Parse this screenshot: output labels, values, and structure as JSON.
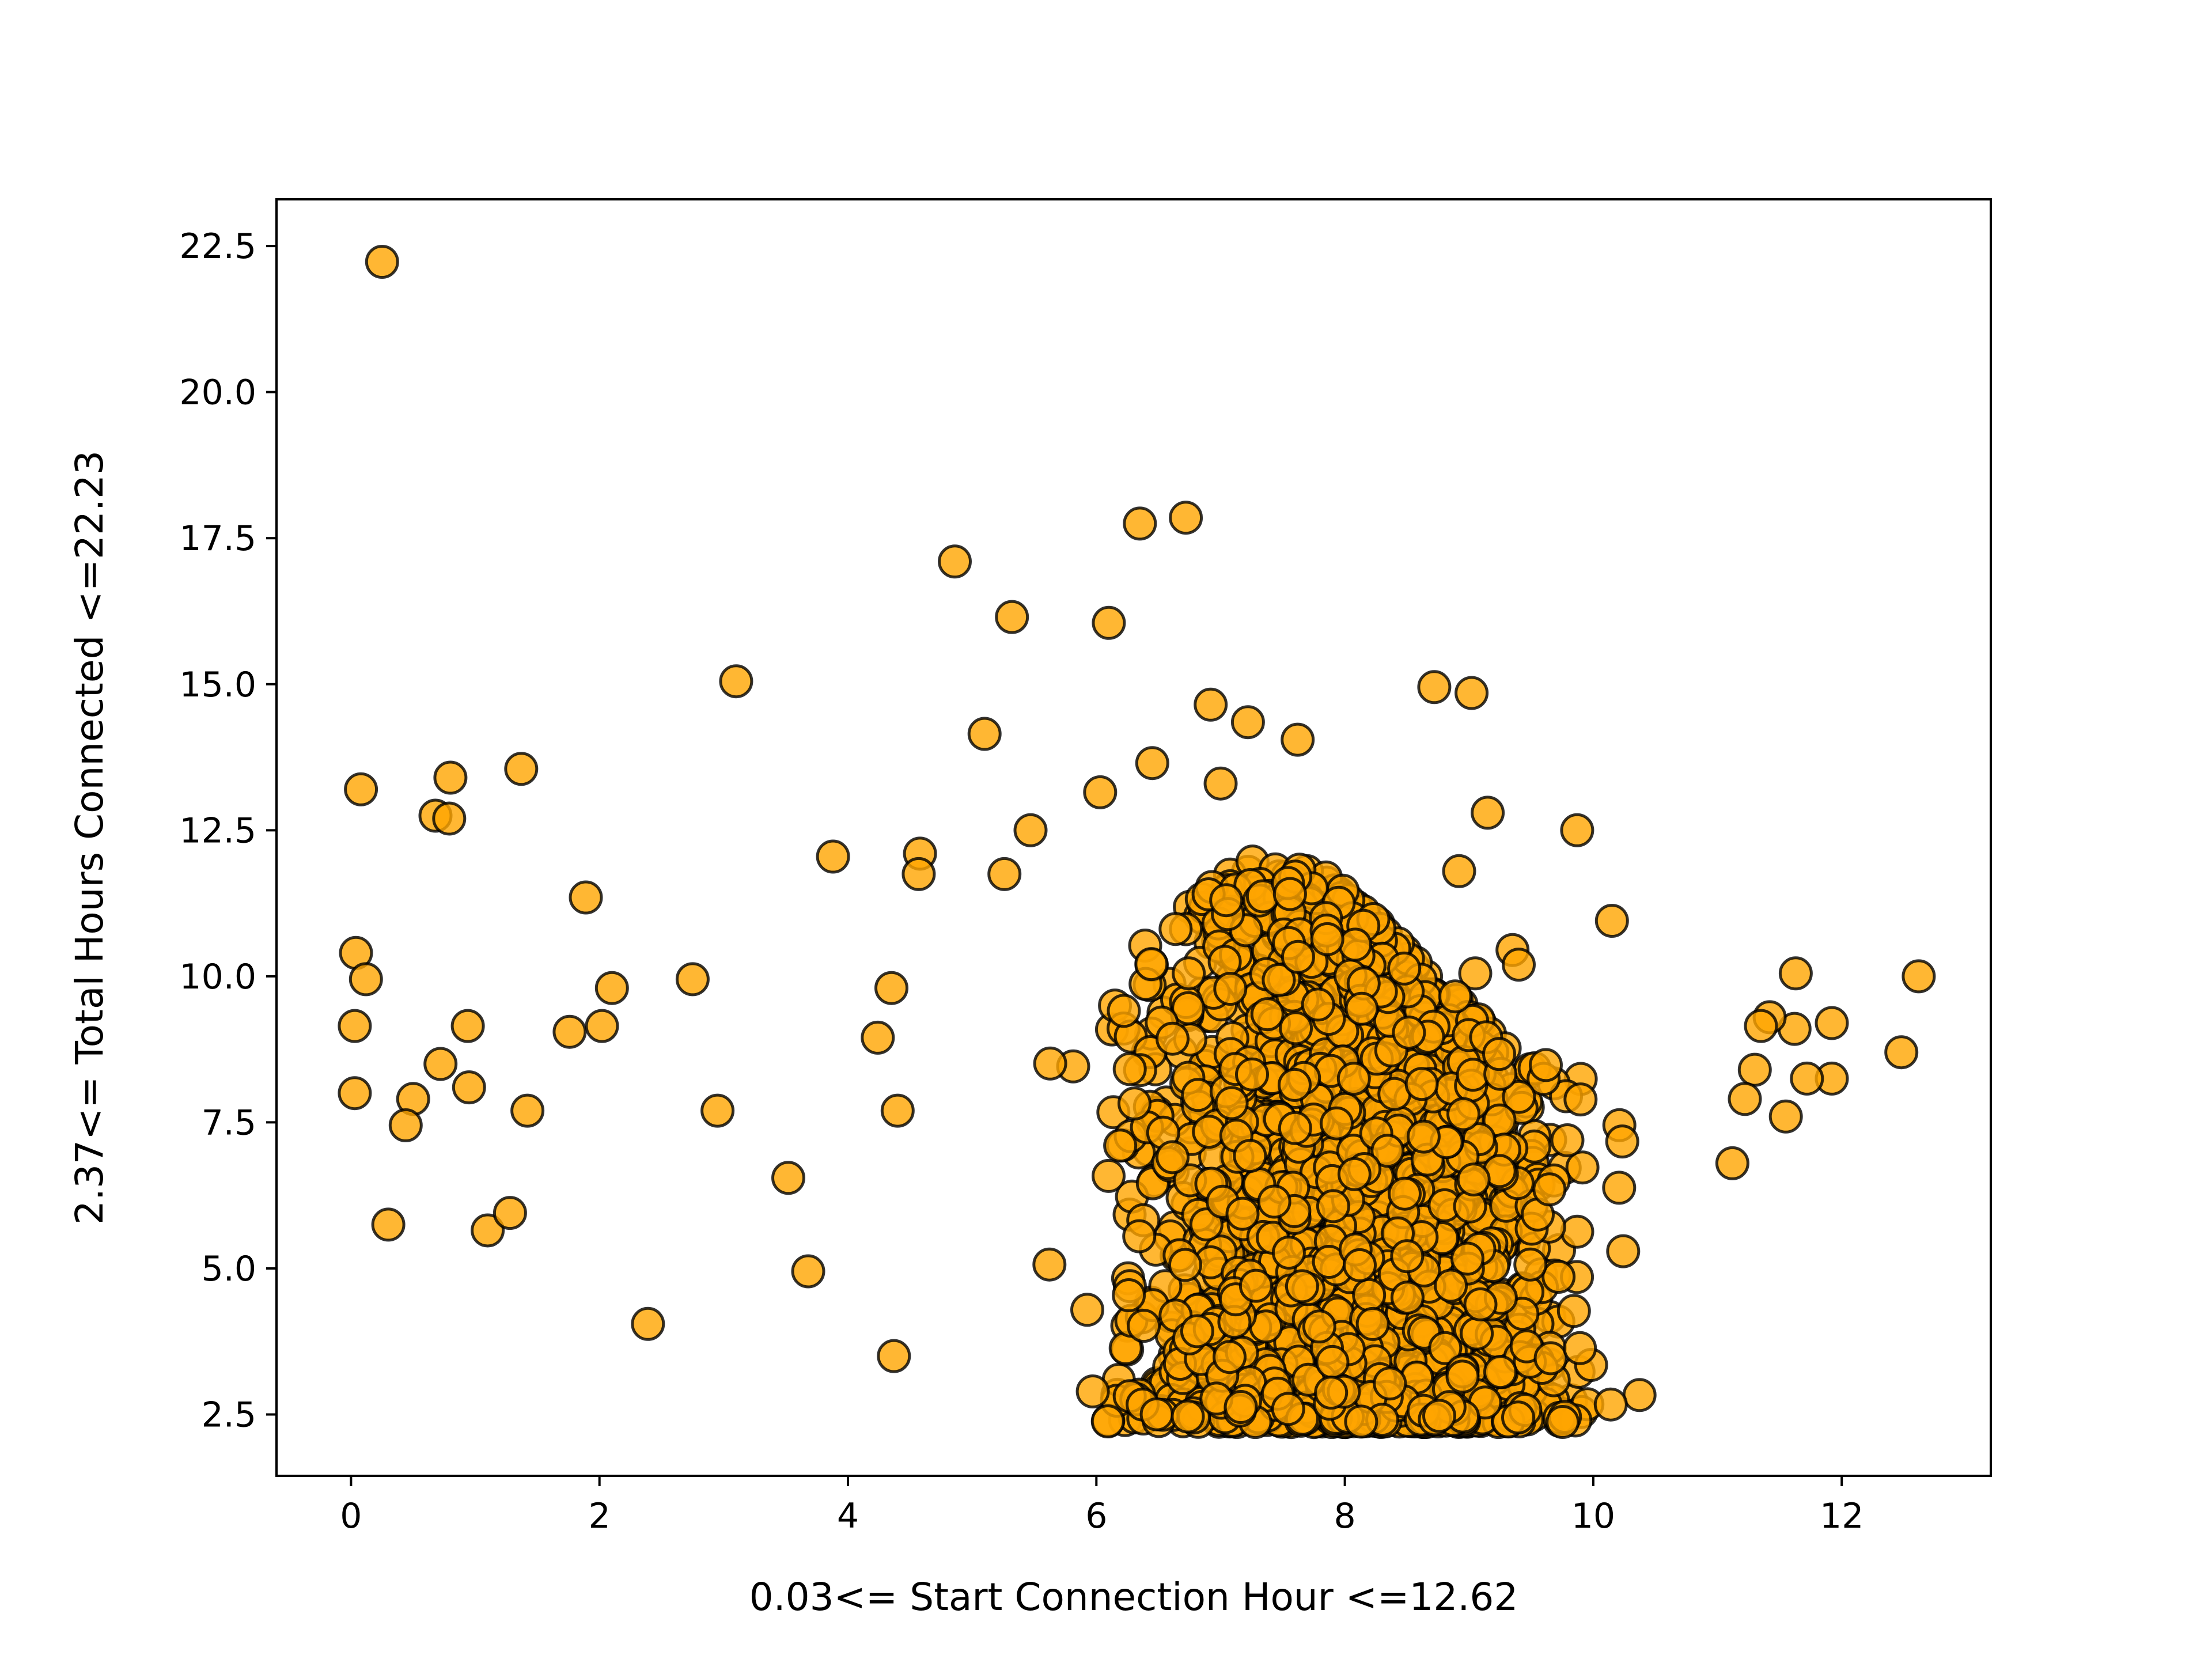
{
  "chart_data": {
    "type": "scatter",
    "title": "",
    "xlabel": "0.03<= Start Connection Hour <=12.62",
    "ylabel": "2.37<= Total Hours Connected <=22.23",
    "xlim": [
      -0.6,
      13.2
    ],
    "ylim": [
      1.45,
      23.3
    ],
    "xticks": [
      0,
      2,
      4,
      6,
      8,
      10,
      12
    ],
    "yticks": [
      2.5,
      5.0,
      7.5,
      10.0,
      12.5,
      15.0,
      17.5,
      20.0,
      22.5
    ],
    "xtick_labels": [
      "0",
      "2",
      "4",
      "6",
      "8",
      "10",
      "12"
    ],
    "ytick_labels": [
      "2.5",
      "5.0",
      "7.5",
      "10.0",
      "12.5",
      "15.0",
      "17.5",
      "20.0",
      "22.5"
    ],
    "grid": false,
    "marker_color": "#FFA500",
    "marker_edge_color": "#000000",
    "marker_alpha": 0.8,
    "outlier_points": [
      [
        0.25,
        22.23
      ],
      [
        0.08,
        13.2
      ],
      [
        0.04,
        10.4
      ],
      [
        0.12,
        9.95
      ],
      [
        0.03,
        9.15
      ],
      [
        0.03,
        8.0
      ],
      [
        0.68,
        12.75
      ],
      [
        0.79,
        12.7
      ],
      [
        0.8,
        13.4
      ],
      [
        0.72,
        8.5
      ],
      [
        0.5,
        7.9
      ],
      [
        0.44,
        7.45
      ],
      [
        0.3,
        5.75
      ],
      [
        0.94,
        9.15
      ],
      [
        0.95,
        8.1
      ],
      [
        1.1,
        5.65
      ],
      [
        1.28,
        5.95
      ],
      [
        1.37,
        13.55
      ],
      [
        1.42,
        7.7
      ],
      [
        1.76,
        9.05
      ],
      [
        1.89,
        11.35
      ],
      [
        2.02,
        9.15
      ],
      [
        2.1,
        9.8
      ],
      [
        2.39,
        4.05
      ],
      [
        2.75,
        9.95
      ],
      [
        2.95,
        7.7
      ],
      [
        3.1,
        15.05
      ],
      [
        3.52,
        6.55
      ],
      [
        3.68,
        4.95
      ],
      [
        3.88,
        12.05
      ],
      [
        4.24,
        8.95
      ],
      [
        4.35,
        9.8
      ],
      [
        4.4,
        7.7
      ],
      [
        4.37,
        3.5
      ],
      [
        4.86,
        17.1
      ],
      [
        5.1,
        14.15
      ],
      [
        5.32,
        16.15
      ],
      [
        6.1,
        16.05
      ],
      [
        6.35,
        17.75
      ],
      [
        6.72,
        17.85
      ],
      [
        6.92,
        14.65
      ],
      [
        7.22,
        14.35
      ],
      [
        7.62,
        14.05
      ],
      [
        8.72,
        14.95
      ],
      [
        9.02,
        14.85
      ],
      [
        9.87,
        12.5
      ],
      [
        10.15,
        10.95
      ],
      [
        11.63,
        10.05
      ],
      [
        12.62,
        10.0
      ],
      [
        12.48,
        8.7
      ],
      [
        11.92,
        8.25
      ],
      [
        11.92,
        9.2
      ],
      [
        11.72,
        8.25
      ],
      [
        11.62,
        9.1
      ],
      [
        11.55,
        7.6
      ],
      [
        11.42,
        9.3
      ],
      [
        11.35,
        9.15
      ],
      [
        11.3,
        8.4
      ],
      [
        11.22,
        7.9
      ],
      [
        11.12,
        6.8
      ],
      [
        9.15,
        12.8
      ],
      [
        8.92,
        11.8
      ],
      [
        9.35,
        10.45
      ],
      [
        9.05,
        10.05
      ],
      [
        9.4,
        10.2
      ],
      [
        6.45,
        13.65
      ],
      [
        6.03,
        13.15
      ],
      [
        7.0,
        13.3
      ],
      [
        5.47,
        12.5
      ],
      [
        4.58,
        12.1
      ],
      [
        5.26,
        11.75
      ],
      [
        4.57,
        11.75
      ]
    ],
    "cluster": {
      "count": 2400,
      "x_range": [
        4.5,
        10.7
      ],
      "y_range": [
        2.37,
        13.0
      ],
      "seed": 7
    }
  }
}
